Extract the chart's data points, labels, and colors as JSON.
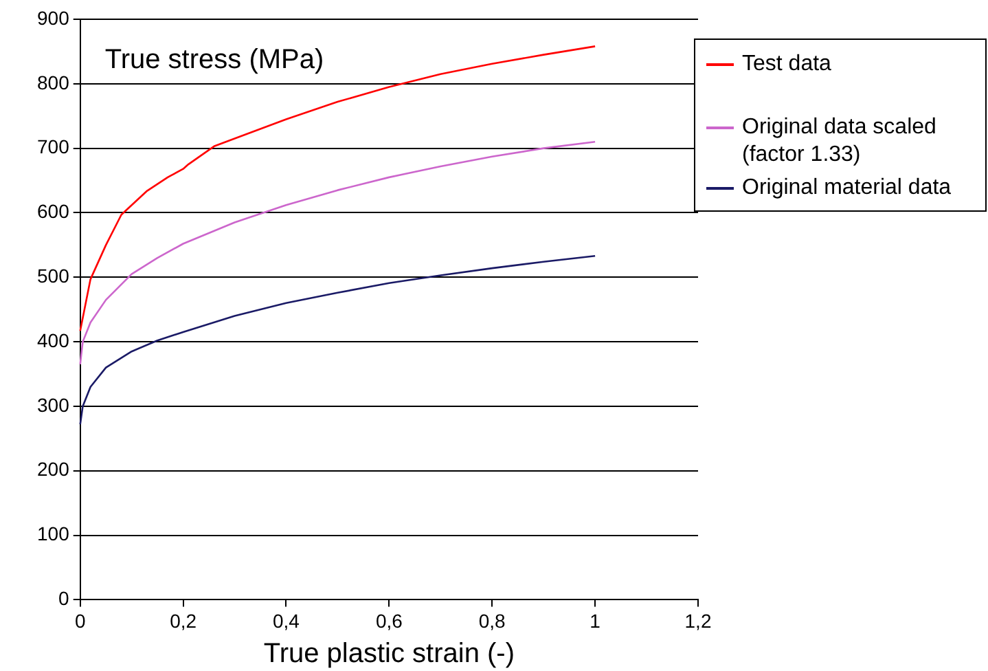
{
  "chart_data": {
    "type": "line",
    "ylabel": "True stress (MPa)",
    "xlabel": "True plastic strain (-)",
    "xlim": [
      0,
      1.2
    ],
    "xticks": [
      0,
      {
        "value": 0.2,
        "label": "0,2"
      },
      {
        "value": 0.4,
        "label": "0,4"
      },
      {
        "value": 0.6,
        "label": "0,6"
      },
      {
        "value": 0.8,
        "label": "0,8"
      },
      1,
      {
        "value": 1.2,
        "label": "1,2"
      }
    ],
    "ylim": [
      0,
      900
    ],
    "yticks": [
      0,
      100,
      200,
      300,
      400,
      500,
      600,
      700,
      800,
      900
    ],
    "grid": "y",
    "legend": "right",
    "marker": "none",
    "line_style": "solid",
    "series": [
      {
        "name": "Test data",
        "color": "#ff0000",
        "x": [
          0,
          0.02,
          0.05,
          0.08,
          0.13,
          0.17,
          0.2,
          0.21,
          0.26,
          0.3,
          0.4,
          0.5,
          0.6,
          0.7,
          0.8,
          0.9,
          1
        ],
        "values": [
          417,
          497,
          550,
          597,
          634,
          655,
          668,
          675,
          703,
          715,
          745,
          772,
          795,
          815,
          831,
          845,
          858
        ]
      },
      {
        "name": "Original data scaled (factor 1.33)",
        "color": "#cc66cc",
        "x": [
          0,
          0.005,
          0.02,
          0.05,
          0.1,
          0.15,
          0.2,
          0.3,
          0.4,
          0.5,
          0.6,
          0.7,
          0.8,
          0.9,
          1
        ],
        "values": [
          365,
          400,
          430,
          465,
          505,
          530,
          552,
          585,
          612,
          635,
          655,
          672,
          687,
          700,
          710
        ]
      },
      {
        "name": "Original material data",
        "color": "#1a1a66",
        "x": [
          0,
          0.005,
          0.02,
          0.05,
          0.1,
          0.15,
          0.2,
          0.3,
          0.4,
          0.5,
          0.6,
          0.7,
          0.8,
          0.9,
          1
        ],
        "values": [
          272,
          300,
          330,
          360,
          385,
          402,
          415,
          440,
          460,
          476,
          491,
          503,
          514,
          524,
          533
        ]
      }
    ]
  }
}
